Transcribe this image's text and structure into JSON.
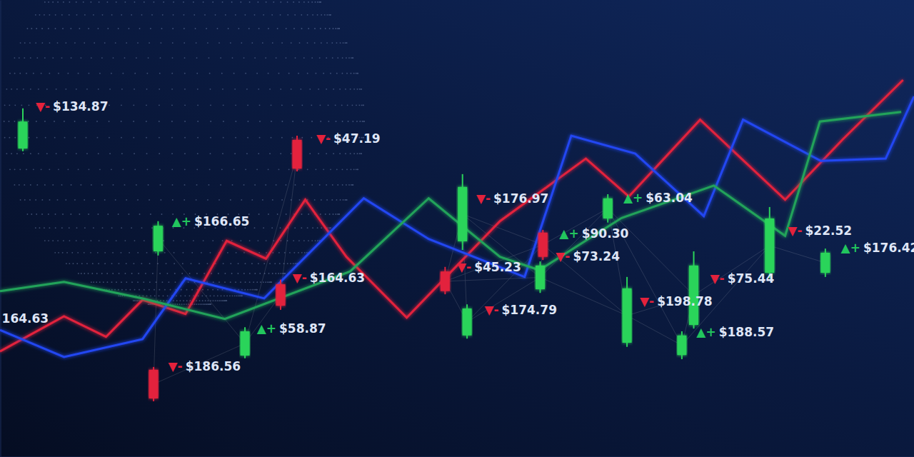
{
  "chart_data": {
    "type": "line",
    "tick_labels": false,
    "xlim": [
      0,
      100
    ],
    "ylim": [
      0,
      100
    ],
    "series": [
      {
        "type": "line",
        "color": "#e3223c",
        "x": [
          0,
          7.0,
          11.6,
          15.6,
          20.3,
          24.8,
          29.1,
          33.4,
          37.9,
          44.5,
          54.7,
          64.1,
          68.8,
          76.6,
          85.9,
          92.2,
          98.8
        ],
        "values": [
          23.1,
          30.8,
          26.3,
          34.4,
          31.3,
          47.3,
          43.4,
          56.3,
          43.8,
          30.5,
          51.6,
          65.3,
          57.0,
          73.8,
          56.3,
          69.5,
          82.5
        ]
      },
      {
        "type": "line",
        "color": "#2346f2",
        "x": [
          0,
          7.0,
          15.6,
          20.3,
          28.9,
          39.8,
          46.9,
          57.4,
          62.5,
          69.5,
          77.0,
          81.3,
          89.8,
          96.9,
          100
        ],
        "values": [
          27.8,
          21.9,
          25.8,
          39.1,
          34.7,
          56.6,
          47.7,
          39.4,
          70.3,
          66.4,
          52.7,
          73.8,
          64.8,
          65.3,
          78.9
        ]
      },
      {
        "type": "line",
        "color": "#22a35a",
        "x": [
          0,
          7.0,
          15.6,
          24.6,
          38.3,
          46.9,
          54.7,
          59.0,
          68.0,
          78.1,
          85.9,
          89.7,
          98.6
        ],
        "values": [
          36.3,
          38.3,
          34.7,
          30.2,
          40.6,
          56.6,
          43.8,
          40.9,
          52.3,
          59.4,
          48.4,
          73.4,
          75.5
        ]
      }
    ],
    "candles": {
      "x": [
        2.5,
        32.5,
        17.3,
        50.6,
        66.5,
        59.4,
        30.7,
        48.7,
        26.8,
        16.8,
        51.1,
        59.1,
        68.6,
        75.9,
        74.6,
        84.2,
        90.3
      ],
      "open": [
        67.5,
        69.4,
        45.0,
        47.2,
        52.2,
        49.1,
        37.8,
        40.6,
        22.2,
        19.1,
        26.6,
        36.7,
        25.0,
        28.9,
        22.3,
        40.3,
        40.3
      ],
      "high": [
        76.3,
        70.3,
        51.6,
        61.9,
        57.5,
        49.7,
        38.8,
        41.6,
        28.4,
        19.7,
        33.4,
        42.8,
        39.4,
        45.0,
        27.5,
        54.7,
        45.6
      ],
      "low": [
        66.9,
        62.5,
        44.1,
        45.3,
        51.3,
        43.1,
        32.2,
        35.6,
        21.6,
        12.2,
        25.9,
        35.9,
        24.1,
        28.1,
        21.4,
        39.1,
        39.4
      ],
      "close": [
        73.4,
        63.1,
        50.6,
        59.1,
        56.6,
        43.8,
        33.1,
        36.3,
        27.5,
        12.8,
        32.5,
        41.9,
        36.9,
        41.9,
        26.6,
        52.2,
        44.7
      ]
    },
    "annotations": {
      "x": [
        3.9,
        34.6,
        18.8,
        52.1,
        68.2,
        61.2,
        60.8,
        32.0,
        50.0,
        28.1,
        18.4,
        53.0,
        70.0,
        77.7,
        76.2,
        86.2,
        92.0,
        0.2
      ],
      "y": [
        76.6,
        69.5,
        51.4,
        56.4,
        56.6,
        48.8,
        43.8,
        39.1,
        41.4,
        28.0,
        19.7,
        32.0,
        33.9,
        38.9,
        27.2,
        49.4,
        45.6,
        30.2
      ],
      "signs": [
        "▼-",
        "▼-",
        "▲+",
        "▼-",
        "▲+",
        "▲+",
        "▼-",
        "▼-",
        "▼-",
        "▲+",
        "▼-",
        "▼-",
        "▼-",
        "▼-",
        "▲+",
        "▼-",
        "▲+",
        null
      ],
      "text": [
        "$134.87",
        "$47.19",
        "$166.65",
        "$176.97",
        "$63.04",
        "$90.30",
        "$73.24",
        "$164.63",
        "$45.23",
        "$58.87",
        "$186.56",
        "$174.79",
        "$198.78",
        "$75.44",
        "$188.57",
        "$22.52",
        "$176.42",
        "164.63"
      ],
      "colors": [
        "#e3223c",
        "#e3223c",
        "#22c55e",
        "#e3223c",
        "#22c55e",
        "#22c55e",
        "#e3223c",
        "#e3223c",
        "#e3223c",
        "#22c55e",
        "#e3223c",
        "#e3223c",
        "#e3223c",
        "#e3223c",
        "#22c55e",
        "#e3223c",
        "#22c55e",
        null
      ]
    }
  }
}
